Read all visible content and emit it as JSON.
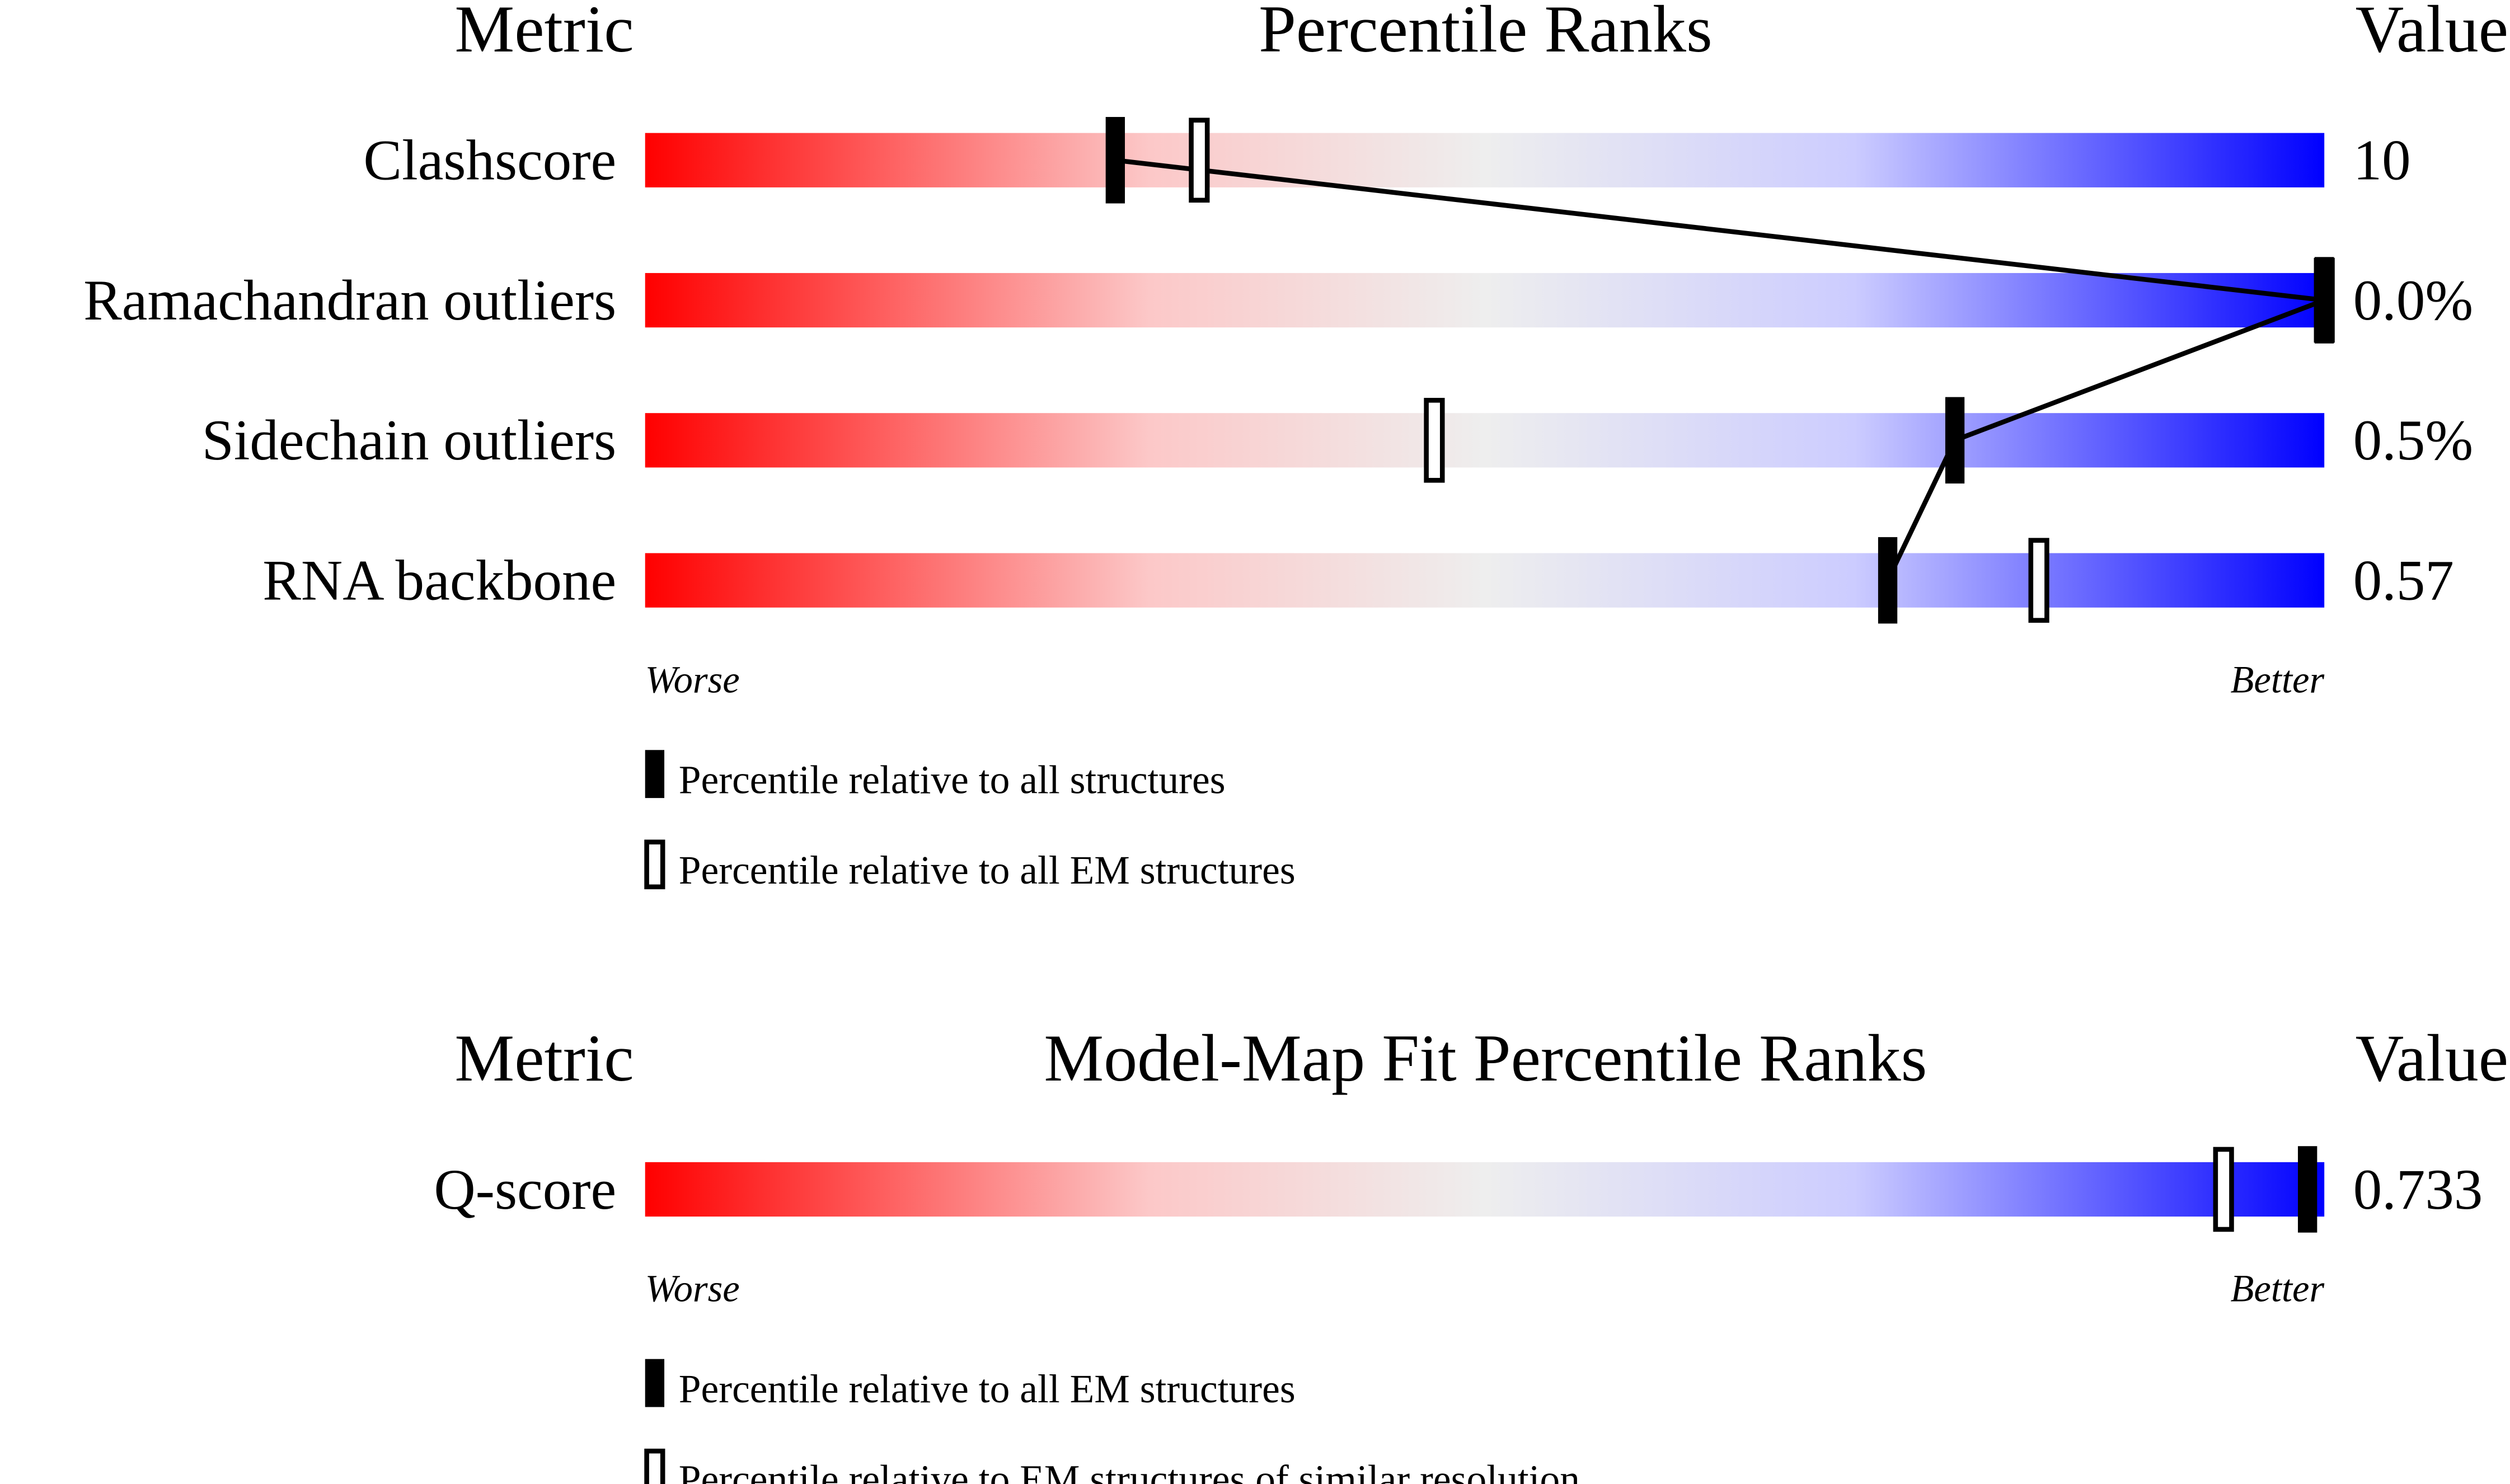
{
  "chart_data": [
    {
      "type": "slider",
      "title": "Percentile Ranks",
      "metric_header": "Metric",
      "value_header": "Value",
      "categories": [
        "Clashscore",
        "Ramachandran outliers",
        "Sidechain outliers",
        "RNA backbone"
      ],
      "metric_values": [
        "10",
        "0.0%",
        "0.5%",
        "0.57"
      ],
      "xlim": [
        0,
        100
      ],
      "worse_label": "Worse",
      "better_label": "Better",
      "connect": true,
      "series": [
        {
          "name": "Percentile relative to all structures",
          "marker": "filled",
          "color": "#000000",
          "values": [
            28,
            100,
            78,
            74
          ]
        },
        {
          "name": "Percentile relative to all EM structures",
          "marker": "open",
          "color": "#000000",
          "values": [
            33,
            100,
            47,
            83
          ]
        }
      ]
    },
    {
      "type": "slider",
      "title": "Model-Map Fit Percentile Ranks",
      "metric_header": "Metric",
      "value_header": "Value",
      "categories": [
        "Q-score"
      ],
      "metric_values": [
        "0.733"
      ],
      "xlim": [
        0,
        100
      ],
      "worse_label": "Worse",
      "better_label": "Better",
      "connect": true,
      "series": [
        {
          "name": "Percentile relative to all EM structures",
          "marker": "filled",
          "color": "#000000",
          "values": [
            99
          ]
        },
        {
          "name": "Percentile relative to EM structures of similar resolution",
          "marker": "open",
          "color": "#000000",
          "values": [
            94
          ]
        }
      ]
    }
  ]
}
